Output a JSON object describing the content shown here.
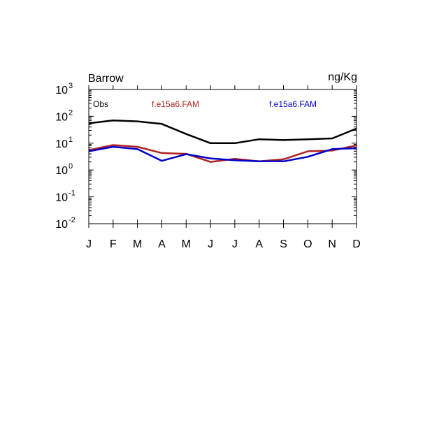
{
  "chart_data": {
    "type": "line",
    "title_left": "Barrow",
    "title_right": "ng/Kg",
    "y_scale": "log",
    "ylim": [
      0.01,
      1000
    ],
    "y_ticks": [
      {
        "value": 0.01,
        "base": "10",
        "exp": "-2"
      },
      {
        "value": 0.1,
        "base": "10",
        "exp": "-1"
      },
      {
        "value": 1,
        "base": "10",
        "exp": "0"
      },
      {
        "value": 10,
        "base": "10",
        "exp": "1"
      },
      {
        "value": 100,
        "base": "10",
        "exp": "2"
      },
      {
        "value": 1000,
        "base": "10",
        "exp": "3"
      }
    ],
    "categories": [
      "J",
      "F",
      "M",
      "A",
      "M",
      "J",
      "J",
      "A",
      "S",
      "O",
      "N",
      "D"
    ],
    "series": [
      {
        "name": "Obs",
        "color": "#000000",
        "values": [
          55,
          70,
          65,
          52,
          22,
          10,
          10,
          14,
          13,
          14,
          15,
          35
        ]
      },
      {
        "name": "f.e15a6.FAM",
        "color": "#b22222",
        "values": [
          5.5,
          8.5,
          7.3,
          4.3,
          4,
          2,
          2.6,
          2.1,
          2.5,
          5,
          5.3,
          8.3
        ]
      },
      {
        "name": "f.e15a6.FAM",
        "color": "#0000cc",
        "values": [
          5,
          7.3,
          6,
          2.2,
          3.9,
          2.7,
          2.3,
          2.1,
          2.1,
          3.1,
          6,
          6.5
        ]
      }
    ],
    "grid": false,
    "legend": "inside-top"
  }
}
